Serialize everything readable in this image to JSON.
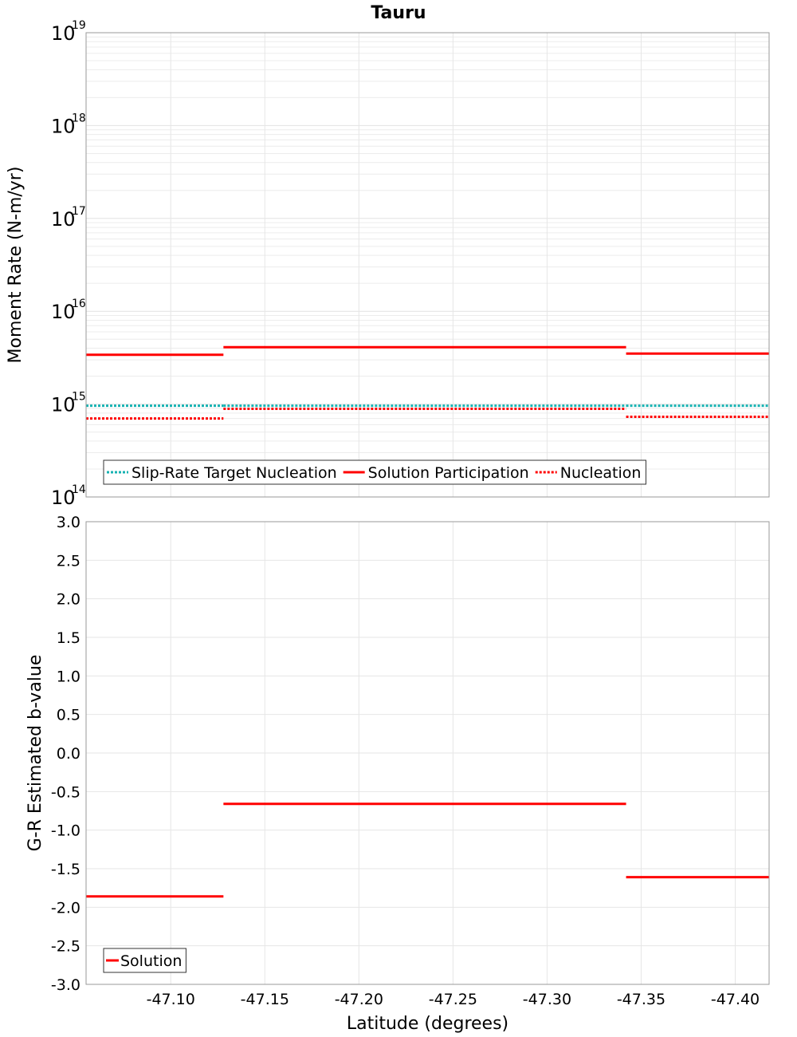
{
  "chart_data": [
    {
      "type": "line",
      "title": "Tauru",
      "ylabel": "Moment Rate (N-m/yr)",
      "xlabel": "",
      "yscale": "log",
      "ylim": [
        100000000000000.0,
        1e+19
      ],
      "xlim": [
        -47.055,
        -47.418
      ],
      "y_tick_labels": [
        {
          "base": "10",
          "exp": "14",
          "value": 100000000000000.0
        },
        {
          "base": "10",
          "exp": "15",
          "value": 1000000000000000.0
        },
        {
          "base": "10",
          "exp": "16",
          "value": 1e+16
        },
        {
          "base": "10",
          "exp": "17",
          "value": 1e+17
        },
        {
          "base": "10",
          "exp": "18",
          "value": 1e+18
        },
        {
          "base": "10",
          "exp": "19",
          "value": 1e+19
        }
      ],
      "legend": {
        "position": "bottom-left",
        "entries": [
          {
            "label": "Slip-Rate Target Nucleation",
            "color": "#17b2b2",
            "style": "dotted"
          },
          {
            "label": "Solution Participation",
            "color": "#ff0000",
            "style": "solid"
          },
          {
            "label": "Nucleation",
            "color": "#ff0000",
            "style": "dotted"
          }
        ]
      },
      "series": [
        {
          "name": "Slip-Rate Target Nucleation",
          "color": "#17b2b2",
          "style": "dotted",
          "segments": [
            {
              "x": [
                -47.055,
                -47.128
              ],
              "y": 960000000000000.0
            },
            {
              "x": [
                -47.128,
                -47.342
              ],
              "y": 960000000000000.0
            },
            {
              "x": [
                -47.342,
                -47.418
              ],
              "y": 960000000000000.0
            }
          ]
        },
        {
          "name": "Solution Participation",
          "color": "#ff0000",
          "style": "solid",
          "segments": [
            {
              "x": [
                -47.055,
                -47.128
              ],
              "y": 3400000000000000.0
            },
            {
              "x": [
                -47.128,
                -47.342
              ],
              "y": 4100000000000000.0
            },
            {
              "x": [
                -47.342,
                -47.418
              ],
              "y": 3500000000000000.0
            }
          ]
        },
        {
          "name": "Nucleation",
          "color": "#ff0000",
          "style": "dotted",
          "segments": [
            {
              "x": [
                -47.055,
                -47.128
              ],
              "y": 700000000000000.0
            },
            {
              "x": [
                -47.128,
                -47.342
              ],
              "y": 890000000000000.0
            },
            {
              "x": [
                -47.342,
                -47.418
              ],
              "y": 730000000000000.0
            }
          ]
        }
      ]
    },
    {
      "type": "line",
      "title": "",
      "ylabel": "G-R Estimated b-value",
      "xlabel": "Latitude (degrees)",
      "ylim": [
        -3.0,
        3.0
      ],
      "xlim": [
        -47.055,
        -47.418
      ],
      "y_ticks": [
        "3.0",
        "2.5",
        "2.0",
        "1.5",
        "1.0",
        "0.5",
        "0.0",
        "-0.5",
        "-1.0",
        "-1.5",
        "-2.0",
        "-2.5",
        "-3.0"
      ],
      "x_ticks": [
        "-47.10",
        "-47.15",
        "-47.20",
        "-47.25",
        "-47.30",
        "-47.35",
        "-47.40"
      ],
      "legend": {
        "position": "bottom-left",
        "entries": [
          {
            "label": "Solution",
            "color": "#ff0000",
            "style": "solid"
          }
        ]
      },
      "series": [
        {
          "name": "Solution",
          "color": "#ff0000",
          "style": "solid",
          "segments": [
            {
              "x": [
                -47.055,
                -47.128
              ],
              "y": -1.86
            },
            {
              "x": [
                -47.128,
                -47.342
              ],
              "y": -0.66
            },
            {
              "x": [
                -47.342,
                -47.418
              ],
              "y": -1.61
            }
          ]
        }
      ]
    }
  ]
}
